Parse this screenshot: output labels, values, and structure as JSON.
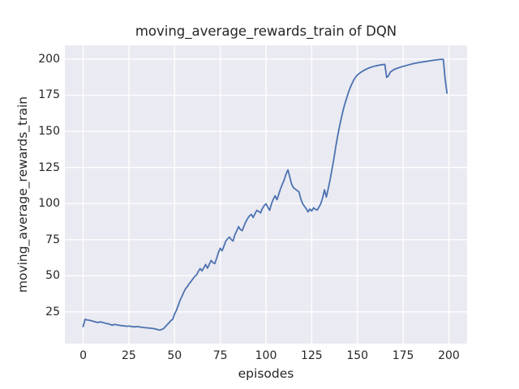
{
  "figure": {
    "background_color": "#ffffff",
    "axes_background_color": "#eaeaf2",
    "grid_color": "#ffffff",
    "text_color": "#262626"
  },
  "chart_data": {
    "type": "line",
    "title": "moving_average_rewards_train of DQN",
    "xlabel": "episodes",
    "ylabel": "moving_average_rewards_train",
    "xlim": [
      -10,
      210
    ],
    "ylim": [
      3,
      209.5
    ],
    "xticks": [
      0,
      25,
      50,
      75,
      100,
      125,
      150,
      175,
      200
    ],
    "yticks": [
      25,
      50,
      75,
      100,
      125,
      150,
      175,
      200
    ],
    "grid": true,
    "legend_position": "none",
    "series": [
      {
        "name": "moving_average_rewards_train",
        "color": "#4c72b0",
        "line_width": 1.8,
        "x": [
          0,
          1,
          2,
          4,
          6,
          8,
          9,
          10,
          12,
          14,
          15,
          16,
          17,
          18,
          20,
          22,
          24,
          25,
          26,
          28,
          30,
          32,
          34,
          36,
          38,
          40,
          41,
          42,
          43,
          44,
          45,
          46,
          47,
          48,
          49,
          50,
          51,
          52,
          53,
          54,
          55,
          56,
          57,
          58,
          59,
          60,
          61,
          62,
          63,
          64,
          65,
          66,
          67,
          68,
          69,
          70,
          71,
          72,
          73,
          74,
          75,
          76,
          77,
          78,
          79,
          80,
          81,
          82,
          83,
          84,
          85,
          86,
          87,
          88,
          89,
          90,
          91,
          92,
          93,
          94,
          95,
          96,
          97,
          98,
          99,
          100,
          101,
          102,
          103,
          104,
          105,
          106,
          107,
          108,
          109,
          110,
          111,
          112,
          113,
          114,
          115,
          116,
          117,
          118,
          119,
          120,
          121,
          122,
          123,
          124,
          125,
          126,
          127,
          128,
          129,
          130,
          131,
          132,
          133,
          134,
          135,
          136,
          137,
          138,
          139,
          140,
          141,
          142,
          143,
          144,
          145,
          146,
          147,
          148,
          149,
          150,
          152,
          154,
          156,
          158,
          160,
          162,
          164,
          165,
          166,
          167,
          168,
          170,
          172,
          174,
          176,
          178,
          180,
          182,
          184,
          186,
          188,
          190,
          192,
          194,
          196,
          197,
          198,
          199
        ],
        "y": [
          14.8,
          19.8,
          19.5,
          19.0,
          18.3,
          17.6,
          18.0,
          17.9,
          17.2,
          16.6,
          16.2,
          15.7,
          16.3,
          16.1,
          15.6,
          15.3,
          15.0,
          15.2,
          14.9,
          14.6,
          14.8,
          14.3,
          14.0,
          13.8,
          13.5,
          13.0,
          12.6,
          12.4,
          12.8,
          13.4,
          14.8,
          16.2,
          17.4,
          19.0,
          19.8,
          23.5,
          26.0,
          29.5,
          33.0,
          35.6,
          38.5,
          41.0,
          42.5,
          44.5,
          46.0,
          47.8,
          49.5,
          50.6,
          53.0,
          55.0,
          53.3,
          55.5,
          57.8,
          55.2,
          58.0,
          60.6,
          59.0,
          58.4,
          62.0,
          66.2,
          69.0,
          67.3,
          70.5,
          74.0,
          75.5,
          76.8,
          75.0,
          74.0,
          78.5,
          81.0,
          84.0,
          82.0,
          81.2,
          84.5,
          87.5,
          89.7,
          91.5,
          92.5,
          90.3,
          93.0,
          95.3,
          94.5,
          93.5,
          96.5,
          98.5,
          99.8,
          97.5,
          95.3,
          99.8,
          103.0,
          105.4,
          102.6,
          106.5,
          110.4,
          113.5,
          116.5,
          120.5,
          123.3,
          118.5,
          113.5,
          111.0,
          110.0,
          109.0,
          108.2,
          103.5,
          100.0,
          98.1,
          96.4,
          94.2,
          96.2,
          94.8,
          97.0,
          96.0,
          95.5,
          97.5,
          100.0,
          104.0,
          109.5,
          104.5,
          110.0,
          116.0,
          123.0,
          130.0,
          138.0,
          145.5,
          152.0,
          158.0,
          163.5,
          168.5,
          172.5,
          176.5,
          180.0,
          183.0,
          185.5,
          187.5,
          189.0,
          191.0,
          192.5,
          193.7,
          194.6,
          195.3,
          195.8,
          196.2,
          196.4,
          187.3,
          188.5,
          191.0,
          192.8,
          193.8,
          194.6,
          195.3,
          196.0,
          196.7,
          197.2,
          197.7,
          198.1,
          198.5,
          198.9,
          199.3,
          199.6,
          199.9,
          199.8,
          186.0,
          176.5
        ]
      }
    ]
  }
}
